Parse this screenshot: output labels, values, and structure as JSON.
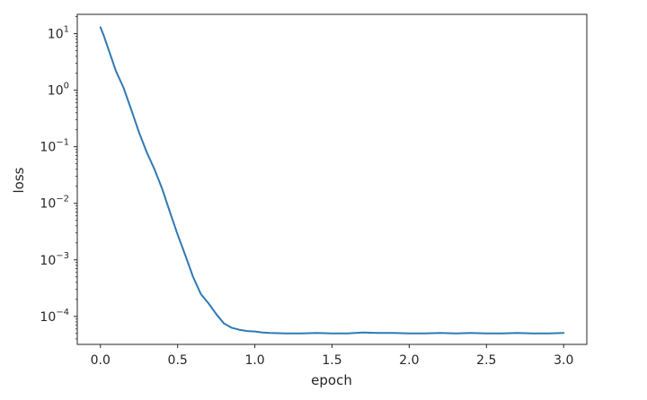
{
  "chart_data": {
    "type": "line",
    "title": "",
    "xlabel": "epoch",
    "ylabel": "loss",
    "yscale": "log",
    "xlim": [
      -0.15,
      3.15
    ],
    "ylim": [
      3.2e-05,
      22
    ],
    "xticks": [
      {
        "value": 0.0,
        "label": "0.0"
      },
      {
        "value": 0.5,
        "label": "0.5"
      },
      {
        "value": 1.0,
        "label": "1.0"
      },
      {
        "value": 1.5,
        "label": "1.5"
      },
      {
        "value": 2.0,
        "label": "2.0"
      },
      {
        "value": 2.5,
        "label": "2.5"
      },
      {
        "value": 3.0,
        "label": "3.0"
      }
    ],
    "yticks": [
      {
        "value": 10,
        "base": "10",
        "exp": "1"
      },
      {
        "value": 1,
        "base": "10",
        "exp": "0"
      },
      {
        "value": 0.1,
        "base": "10",
        "exp": "−1"
      },
      {
        "value": 0.01,
        "base": "10",
        "exp": "−2"
      },
      {
        "value": 0.001,
        "base": "10",
        "exp": "−3"
      },
      {
        "value": 0.0001,
        "base": "10",
        "exp": "−4"
      }
    ],
    "grid": false,
    "legend": "none",
    "series": [
      {
        "color": "#2f7ab4",
        "x": [
          0.0,
          0.02,
          0.05,
          0.1,
          0.15,
          0.2,
          0.25,
          0.3,
          0.35,
          0.4,
          0.45,
          0.5,
          0.55,
          0.6,
          0.65,
          0.7,
          0.75,
          0.8,
          0.85,
          0.9,
          0.95,
          1.0,
          1.05,
          1.1,
          1.2,
          1.3,
          1.4,
          1.5,
          1.6,
          1.7,
          1.8,
          1.9,
          2.0,
          2.1,
          2.2,
          2.3,
          2.4,
          2.5,
          2.6,
          2.7,
          2.8,
          2.9,
          3.0
        ],
        "y": [
          13,
          9.5,
          5.5,
          2.2,
          1.1,
          0.45,
          0.18,
          0.08,
          0.04,
          0.018,
          0.007,
          0.0028,
          0.0012,
          0.0005,
          0.00025,
          0.00017,
          0.00011,
          7.5e-05,
          6.3e-05,
          5.8e-05,
          5.5e-05,
          5.4e-05,
          5.2e-05,
          5.1e-05,
          5e-05,
          5e-05,
          5.1e-05,
          5e-05,
          5e-05,
          5.2e-05,
          5.1e-05,
          5.1e-05,
          5e-05,
          5e-05,
          5.1e-05,
          5e-05,
          5.1e-05,
          5e-05,
          5e-05,
          5.1e-05,
          5e-05,
          5e-05,
          5.1e-05
        ]
      }
    ]
  }
}
